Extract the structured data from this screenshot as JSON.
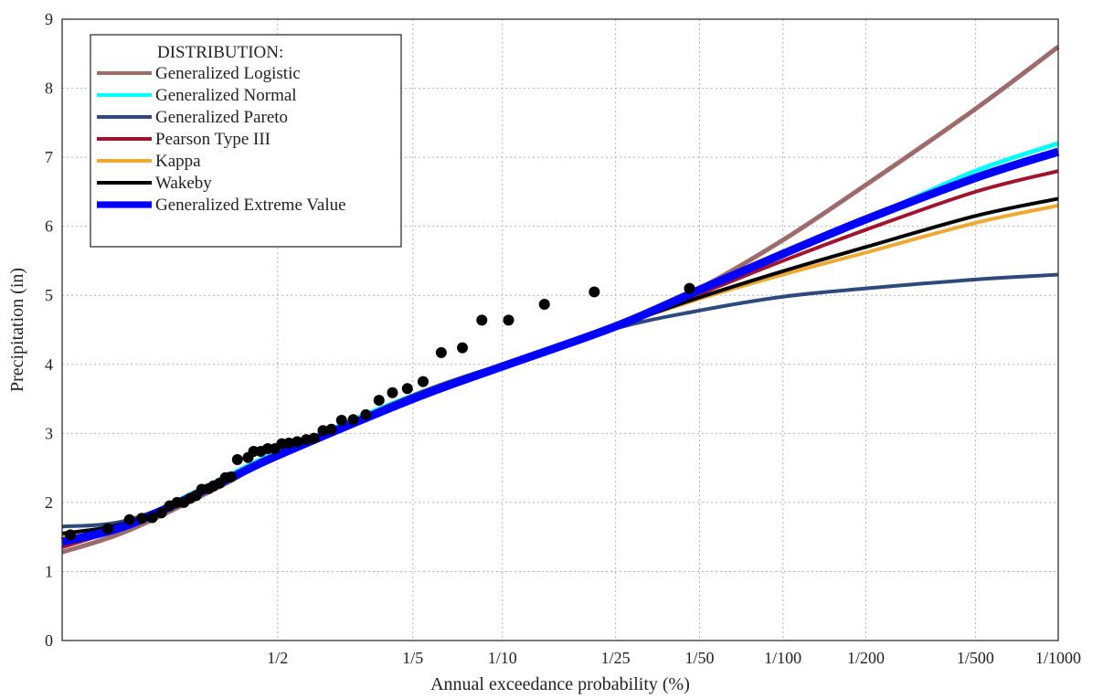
{
  "chart_data": {
    "type": "line",
    "title": "",
    "xlabel": "Annual exceedance probability (%)",
    "ylabel": "Precipitation (in)",
    "ylim": [
      0,
      9
    ],
    "y_ticks": [
      0,
      1,
      2,
      3,
      4,
      5,
      6,
      7,
      8,
      9
    ],
    "x_scale": "gumbel reduced variate (probability plot)",
    "x_range_return_period": [
      1.015,
      1000
    ],
    "x_tick_labels": [
      "1/2",
      "1/5",
      "1/10",
      "1/25",
      "1/50",
      "1/100",
      "1/200",
      "1/500",
      "1/1000"
    ],
    "x_tick_return_periods": [
      2,
      5,
      10,
      25,
      50,
      100,
      200,
      500,
      1000
    ],
    "grid": "dotted",
    "legend": {
      "title": "DISTRIBUTION:",
      "placement": "top-left"
    },
    "series": [
      {
        "name": "Generalized Logistic",
        "color": "#9e6b6b",
        "width": 5,
        "return_period": [
          1.015,
          1.1,
          1.5,
          2,
          5,
          10,
          25,
          50,
          100,
          200,
          500,
          1000
        ],
        "values": [
          1.28,
          1.6,
          2.25,
          2.68,
          3.5,
          3.95,
          4.55,
          5.1,
          5.8,
          6.6,
          7.7,
          8.6
        ]
      },
      {
        "name": "Generalized Normal",
        "color": "#00ffff",
        "width": 5,
        "return_period": [
          1.015,
          1.1,
          1.5,
          2,
          5,
          10,
          25,
          50,
          100,
          200,
          500,
          1000
        ],
        "values": [
          1.4,
          1.7,
          2.35,
          2.73,
          3.55,
          3.98,
          4.58,
          5.1,
          5.62,
          6.1,
          6.8,
          7.2
        ]
      },
      {
        "name": "Generalized Pareto",
        "color": "#2e4a7d",
        "width": 4,
        "return_period": [
          1.015,
          1.1,
          1.5,
          2,
          5,
          10,
          25,
          50,
          100,
          200,
          500,
          1000
        ],
        "values": [
          1.65,
          1.75,
          2.3,
          2.68,
          3.55,
          4.0,
          4.52,
          4.78,
          4.98,
          5.1,
          5.23,
          5.3
        ]
      },
      {
        "name": "Pearson Type III",
        "color": "#a0142e",
        "width": 4,
        "return_period": [
          1.015,
          1.1,
          1.5,
          2,
          5,
          10,
          25,
          50,
          100,
          200,
          500,
          1000
        ],
        "values": [
          1.35,
          1.68,
          2.3,
          2.68,
          3.5,
          3.95,
          4.55,
          5.02,
          5.5,
          5.95,
          6.5,
          6.8
        ]
      },
      {
        "name": "Kappa",
        "color": "#f0a830",
        "width": 4,
        "return_period": [
          1.015,
          1.1,
          1.5,
          2,
          5,
          10,
          25,
          50,
          100,
          200,
          500,
          1000
        ],
        "values": [
          1.5,
          1.72,
          2.3,
          2.67,
          3.52,
          3.98,
          4.55,
          4.95,
          5.3,
          5.62,
          6.05,
          6.3
        ]
      },
      {
        "name": "Wakeby",
        "color": "#000000",
        "width": 4,
        "return_period": [
          1.015,
          1.1,
          1.5,
          2,
          5,
          10,
          25,
          50,
          100,
          200,
          500,
          1000
        ],
        "values": [
          1.55,
          1.72,
          2.3,
          2.67,
          3.52,
          3.98,
          4.55,
          4.97,
          5.35,
          5.7,
          6.15,
          6.4
        ]
      },
      {
        "name": "Generalized Extreme Value",
        "color": "#0000ff",
        "width": 9,
        "return_period": [
          1.015,
          1.1,
          1.5,
          2,
          5,
          10,
          25,
          50,
          100,
          200,
          500,
          1000
        ],
        "values": [
          1.43,
          1.68,
          2.3,
          2.68,
          3.5,
          3.97,
          4.55,
          5.08,
          5.6,
          6.1,
          6.7,
          7.08
        ]
      },
      {
        "name": "",
        "type": "scatter",
        "color": "#000000",
        "return_period": [
          1.02,
          1.06,
          1.1,
          1.13,
          1.16,
          1.19,
          1.22,
          1.25,
          1.28,
          1.31,
          1.34,
          1.37,
          1.41,
          1.44,
          1.48,
          1.52,
          1.56,
          1.61,
          1.7,
          1.75,
          1.82,
          1.89,
          1.97,
          2.05,
          2.14,
          2.25,
          2.38,
          2.5,
          2.65,
          2.8,
          3.0,
          3.25,
          3.55,
          3.9,
          4.3,
          4.8,
          5.4,
          6.2,
          7.3,
          8.5,
          10.5,
          14,
          21,
          46
        ],
        "values": [
          1.53,
          1.62,
          1.75,
          1.77,
          1.78,
          1.85,
          1.95,
          2.0,
          2.0,
          2.06,
          2.1,
          2.19,
          2.2,
          2.24,
          2.28,
          2.36,
          2.37,
          2.62,
          2.65,
          2.74,
          2.74,
          2.78,
          2.78,
          2.85,
          2.86,
          2.88,
          2.91,
          2.93,
          3.04,
          3.06,
          3.19,
          3.2,
          3.27,
          3.48,
          3.59,
          3.65,
          3.75,
          4.17,
          4.24,
          4.64,
          4.64,
          4.87,
          5.05,
          5.1
        ]
      }
    ]
  }
}
